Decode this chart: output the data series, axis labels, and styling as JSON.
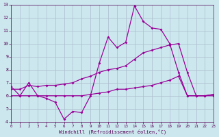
{
  "xlabel": "Windchill (Refroidissement éolien,°C)",
  "bg_color": "#cce8ee",
  "grid_color": "#aabbcc",
  "line_color": "#990099",
  "xlim": [
    0,
    23
  ],
  "ylim": [
    4,
    13
  ],
  "xticks": [
    0,
    1,
    2,
    3,
    4,
    5,
    6,
    7,
    8,
    9,
    10,
    11,
    12,
    13,
    14,
    15,
    16,
    17,
    18,
    19,
    20,
    21,
    22,
    23
  ],
  "yticks": [
    4,
    5,
    6,
    7,
    8,
    9,
    10,
    11,
    12,
    13
  ],
  "line1_x": [
    0,
    1,
    2,
    3,
    4,
    5,
    6,
    7,
    8,
    9,
    10,
    11,
    12,
    13,
    14,
    15,
    16,
    17,
    18,
    19,
    20,
    21,
    22,
    23
  ],
  "line1_y": [
    6.7,
    6.0,
    7.0,
    6.0,
    5.8,
    5.5,
    4.2,
    4.8,
    4.7,
    6.0,
    8.5,
    10.5,
    9.7,
    10.1,
    12.9,
    11.7,
    11.2,
    11.1,
    10.0,
    7.8,
    6.0,
    6.0,
    6.0,
    6.1
  ],
  "line2_x": [
    0,
    1,
    2,
    3,
    4,
    5,
    6,
    7,
    8,
    9,
    10,
    11,
    12,
    13,
    14,
    15,
    16,
    17,
    18,
    19,
    20,
    21,
    22,
    23
  ],
  "line2_y": [
    6.5,
    6.5,
    6.8,
    6.7,
    6.8,
    6.8,
    6.9,
    7.0,
    7.3,
    7.5,
    7.8,
    8.0,
    8.1,
    8.3,
    8.8,
    9.3,
    9.5,
    9.7,
    9.9,
    10.0,
    7.8,
    6.0,
    6.0,
    6.1
  ],
  "line3_x": [
    0,
    1,
    2,
    3,
    4,
    5,
    6,
    7,
    8,
    9,
    10,
    11,
    12,
    13,
    14,
    15,
    16,
    17,
    18,
    19,
    20,
    21,
    22,
    23
  ],
  "line3_y": [
    6.0,
    6.0,
    6.0,
    6.0,
    6.0,
    6.0,
    6.0,
    6.0,
    6.0,
    6.1,
    6.2,
    6.3,
    6.5,
    6.5,
    6.6,
    6.7,
    6.8,
    7.0,
    7.2,
    7.5,
    6.0,
    6.0,
    6.0,
    6.0
  ]
}
